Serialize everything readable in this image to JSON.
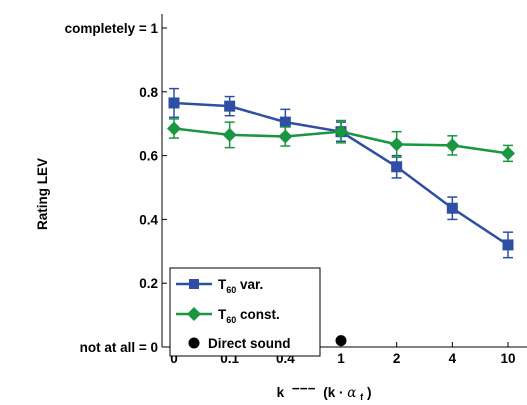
{
  "chart_data": {
    "type": "line",
    "ylabel": "Rating LEV",
    "xlabel": {
      "prefix": "k",
      "dashes": "−−−",
      "paren_open": "(k · ",
      "alpha": "α",
      "alpha_sub": "f",
      "paren_close": ")"
    },
    "categories": [
      "0",
      "0.1",
      "0.4",
      "1",
      "2",
      "4",
      "10"
    ],
    "ylim": [
      0,
      1
    ],
    "yticks": [
      {
        "value": 0,
        "label": "not at all = 0"
      },
      {
        "value": 0.2,
        "label": "0.2"
      },
      {
        "value": 0.4,
        "label": "0.4"
      },
      {
        "value": 0.6,
        "label": "0.6"
      },
      {
        "value": 0.8,
        "label": "0.8"
      },
      {
        "value": 1,
        "label": "completely = 1"
      }
    ],
    "grid": false,
    "legend_position": "bottom-left",
    "series": [
      {
        "label_main": "T",
        "label_sub": "60",
        "label_rest": " var.",
        "color": "#2e4fa3",
        "marker": "square",
        "values": [
          0.765,
          0.755,
          0.705,
          0.675,
          0.565,
          0.435,
          0.32
        ],
        "errors": [
          0.045,
          0.03,
          0.04,
          0.03,
          0.035,
          0.035,
          0.04
        ]
      },
      {
        "label_main": "T",
        "label_sub": "60",
        "label_rest": " const.",
        "color": "#1a9640",
        "marker": "diamond",
        "values": [
          0.685,
          0.665,
          0.66,
          0.675,
          0.635,
          0.632,
          0.607
        ],
        "errors": [
          0.03,
          0.04,
          0.03,
          0.035,
          0.04,
          0.03,
          0.025
        ]
      }
    ],
    "direct_sound": {
      "label": "Direct sound",
      "x_index": 3,
      "value": 0.02,
      "color": "#000000"
    }
  }
}
